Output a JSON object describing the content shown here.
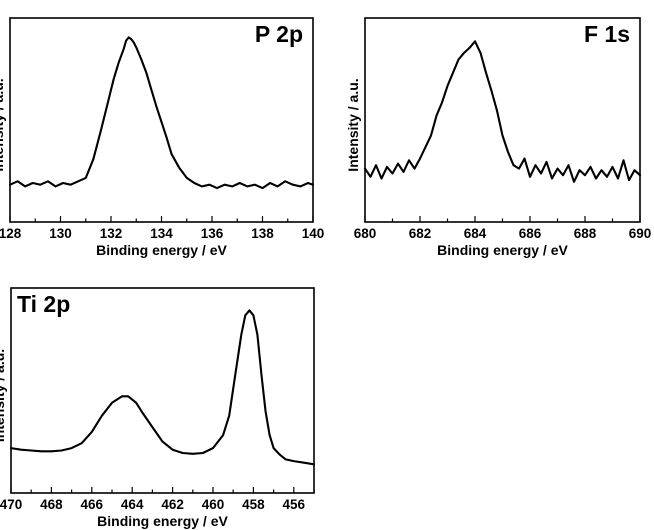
{
  "chart_data": [
    {
      "type": "line",
      "title": "P 2p",
      "xlabel": "Binding energy / eV",
      "ylabel": "Intensity / a.u.",
      "xlim": [
        128,
        140
      ],
      "x_ticks": [
        128,
        130,
        132,
        134,
        136,
        138,
        140
      ],
      "x_reversed": false,
      "ylim": [
        0,
        100
      ],
      "y_tick_labels": false,
      "series": [
        {
          "x": [
            128.0,
            128.3,
            128.6,
            128.9,
            129.2,
            129.5,
            129.8,
            130.1,
            130.4,
            130.7,
            131.0,
            131.3,
            131.6,
            131.9,
            132.1,
            132.3,
            132.5,
            132.6,
            132.7,
            132.8,
            132.9,
            133.0,
            133.2,
            133.4,
            133.6,
            133.8,
            134.0,
            134.2,
            134.4,
            134.7,
            135.0,
            135.3,
            135.6,
            135.9,
            136.2,
            136.5,
            136.8,
            137.1,
            137.4,
            137.7,
            138.0,
            138.3,
            138.6,
            138.9,
            139.2,
            139.5,
            139.8,
            140.0
          ],
          "y": [
            10,
            12,
            9,
            11,
            10,
            12,
            9,
            11,
            10,
            12,
            14,
            25,
            42,
            60,
            72,
            82,
            90,
            95,
            97,
            96,
            94,
            91,
            84,
            76,
            66,
            56,
            47,
            38,
            28,
            20,
            14,
            11,
            9,
            10,
            8,
            10,
            9,
            11,
            9,
            10,
            8,
            11,
            9,
            12,
            10,
            9,
            11,
            10
          ]
        }
      ]
    },
    {
      "type": "line",
      "title": "F 1s",
      "xlabel": "Binding energy / eV",
      "ylabel": "Intensity / a.u.",
      "xlim": [
        680,
        690
      ],
      "x_ticks": [
        680,
        682,
        684,
        686,
        688,
        690
      ],
      "x_reversed": false,
      "ylim": [
        0,
        100
      ],
      "y_tick_labels": false,
      "series": [
        {
          "x": [
            680.0,
            680.2,
            680.4,
            680.6,
            680.8,
            681.0,
            681.2,
            681.4,
            681.6,
            681.8,
            682.0,
            682.2,
            682.4,
            682.6,
            682.8,
            683.0,
            683.2,
            683.4,
            683.6,
            683.8,
            684.0,
            684.2,
            684.4,
            684.6,
            684.8,
            685.0,
            685.2,
            685.4,
            685.6,
            685.8,
            686.0,
            686.2,
            686.4,
            686.6,
            686.8,
            687.0,
            687.2,
            687.4,
            687.6,
            687.8,
            688.0,
            688.2,
            688.4,
            688.6,
            688.8,
            689.0,
            689.2,
            689.4,
            689.6,
            689.8,
            690.0
          ],
          "y": [
            20,
            15,
            22,
            14,
            21,
            17,
            23,
            18,
            25,
            20,
            26,
            33,
            40,
            52,
            60,
            70,
            78,
            86,
            90,
            93,
            97,
            90,
            78,
            67,
            55,
            40,
            30,
            22,
            20,
            26,
            15,
            22,
            17,
            24,
            14,
            20,
            16,
            22,
            12,
            19,
            16,
            21,
            14,
            19,
            15,
            21,
            14,
            25,
            13,
            19,
            16
          ]
        }
      ]
    },
    {
      "type": "line",
      "title": "Ti 2p",
      "xlabel": "Binding energy / eV",
      "ylabel": "Intensity / a.u.",
      "xlim": [
        470,
        455
      ],
      "x_ticks": [
        470,
        468,
        466,
        464,
        462,
        460,
        458,
        456
      ],
      "x_reversed": true,
      "ylim": [
        0,
        100
      ],
      "y_tick_labels": false,
      "series": [
        {
          "x": [
            470.0,
            469.5,
            469.0,
            468.5,
            468.0,
            467.5,
            467.0,
            466.5,
            466.0,
            465.5,
            465.0,
            464.5,
            464.2,
            463.8,
            463.5,
            463.0,
            462.5,
            462.0,
            461.5,
            461.0,
            460.5,
            460.0,
            459.5,
            459.2,
            458.9,
            458.6,
            458.4,
            458.2,
            458.0,
            457.8,
            457.6,
            457.4,
            457.2,
            457.0,
            456.7,
            456.4,
            456.0,
            455.5,
            455.0
          ],
          "y": [
            10,
            9,
            8.5,
            8,
            8,
            8.5,
            10,
            13,
            20,
            30,
            38,
            42,
            42,
            38,
            32,
            23,
            14,
            9,
            7,
            6.5,
            7,
            10,
            18,
            30,
            55,
            80,
            92,
            95,
            92,
            80,
            55,
            33,
            18,
            10,
            6,
            3,
            2,
            1,
            0
          ]
        }
      ]
    }
  ]
}
